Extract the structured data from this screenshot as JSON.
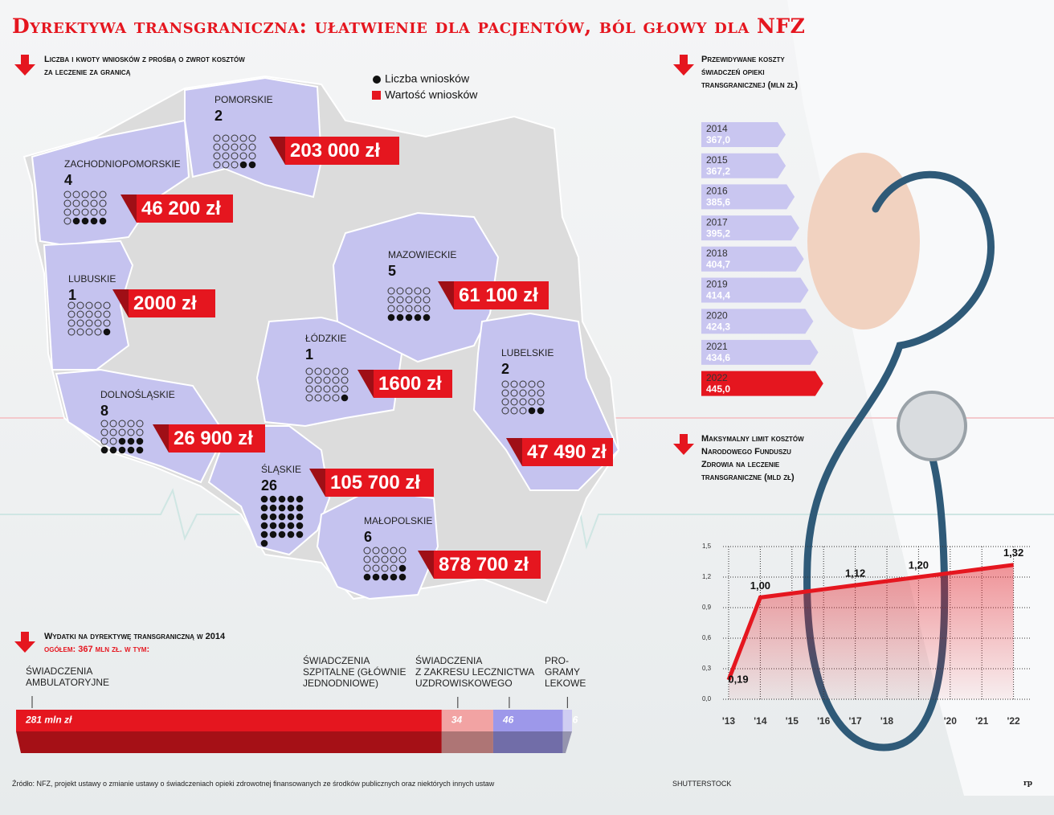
{
  "title": "Dyrektywa transgraniczna: ułatwienie dla pacjentów, ból głowy dla NFZ",
  "source": "Źródło: NFZ, projekt ustawy o zmianie ustawy o świadczeniach opieki zdrowotnej finansowanych ze środków publicznych oraz niektórych innych ustaw",
  "credit": "SHUTTERSTOCK",
  "logo": "rp",
  "chart_data": [
    {
      "type": "map",
      "subtitle": "Liczba i kwoty wniosków z prośbą o zwrot kosztów za leczenie za granicą",
      "legend": [
        "Liczba wniosków",
        "Wartość wniosków"
      ],
      "regions": [
        {
          "name": "POMORSKIE",
          "count": 2,
          "value": 203000,
          "value_label": "203 000 zł"
        },
        {
          "name": "ZACHODNIOPOMORSKIE",
          "count": 4,
          "value": 46200,
          "value_label": "46 200 zł"
        },
        {
          "name": "LUBUSKIE",
          "count": 1,
          "value": 2000,
          "value_label": "2000 zł"
        },
        {
          "name": "MAZOWIECKIE",
          "count": 5,
          "value": 61100,
          "value_label": "61 100 zł"
        },
        {
          "name": "ŁÓDZKIE",
          "count": 1,
          "value": 1600,
          "value_label": "1600 zł"
        },
        {
          "name": "LUBELSKIE",
          "count": 2,
          "value": 47490,
          "value_label": "47 490 zł"
        },
        {
          "name": "DOLNOŚLĄSKIE",
          "count": 8,
          "value": 26900,
          "value_label": "26 900 zł"
        },
        {
          "name": "ŚLĄSKIE",
          "count": 26,
          "value": 105700,
          "value_label": "105 700 zł"
        },
        {
          "name": "MAŁOPOLSKIE",
          "count": 6,
          "value": 878700,
          "value_label": "878 700 zł"
        }
      ]
    },
    {
      "type": "bar",
      "title": "Przewidywane koszty świadczeń opieki transgranicznej (mln zł)",
      "categories": [
        "2014",
        "2015",
        "2016",
        "2017",
        "2018",
        "2019",
        "2020",
        "2021",
        "2022"
      ],
      "values": [
        367.0,
        367.2,
        385.6,
        395.2,
        404.7,
        414.4,
        424.3,
        434.6,
        445.0
      ],
      "value_labels": [
        "367,0",
        "367,2",
        "385,6",
        "395,2",
        "404,7",
        "414,4",
        "424,3",
        "434,6",
        "445,0"
      ],
      "colors": [
        "#c9c6f0",
        "#c9c6f0",
        "#c9c6f0",
        "#c9c6f0",
        "#c9c6f0",
        "#c9c6f0",
        "#c9c6f0",
        "#c9c6f0",
        "#e5161f"
      ]
    },
    {
      "type": "line",
      "title": "Maksymalny limit kosztów Narodowego Funduszu Zdrowia na leczenie transgraniczne (mld zł)",
      "categories": [
        "'13",
        "'14",
        "'15",
        "'16",
        "'17",
        "'18",
        null,
        "'20",
        "'21",
        "'22"
      ],
      "values": [
        0.19,
        1.0,
        1.04,
        1.08,
        1.12,
        1.16,
        1.2,
        1.24,
        1.28,
        1.32
      ],
      "value_labels": [
        "0,19",
        "1,00",
        null,
        null,
        "1,12",
        null,
        "1,20",
        null,
        null,
        "1,32"
      ],
      "color": "#e5161f",
      "ylim": [
        0,
        1.5
      ],
      "yticks": [
        {
          "value": 0,
          "label": "0,0"
        },
        {
          "value": 0.3,
          "label": "0,3"
        },
        {
          "value": 0.6,
          "label": "0,6"
        },
        {
          "value": 0.9,
          "label": "0,9"
        },
        {
          "value": 1.2,
          "label": "1,2"
        },
        {
          "value": 1.5,
          "label": "1,5"
        }
      ],
      "grid": true
    },
    {
      "type": "stacked-bar",
      "title": "Wydatki na dyrektywę transgraniczną w 2014",
      "subtitle": "ogółem: 367 mln zł. w tym:",
      "categories": [
        [
          "ŚWIADCZENIA",
          "AMBULATORYJNE"
        ],
        [
          "ŚWIADCZENIA",
          "SZPITALNE (GŁÓWNIE",
          "JEDNODNIOWE)"
        ],
        [
          "ŚWIADCZENIA",
          "Z ZAKRESU LECZNICTWA",
          "UZDROWISKOWEGO"
        ],
        [
          "PRO-",
          "GRAMY",
          "LEKOWE"
        ]
      ],
      "values": [
        281,
        34,
        46,
        6
      ],
      "value_labels": [
        "281 mln zł",
        "34",
        "46",
        "6"
      ],
      "colors": [
        "#e5161f",
        "#f2a3a3",
        "#9d98ea",
        "#cfcdf2"
      ]
    }
  ]
}
